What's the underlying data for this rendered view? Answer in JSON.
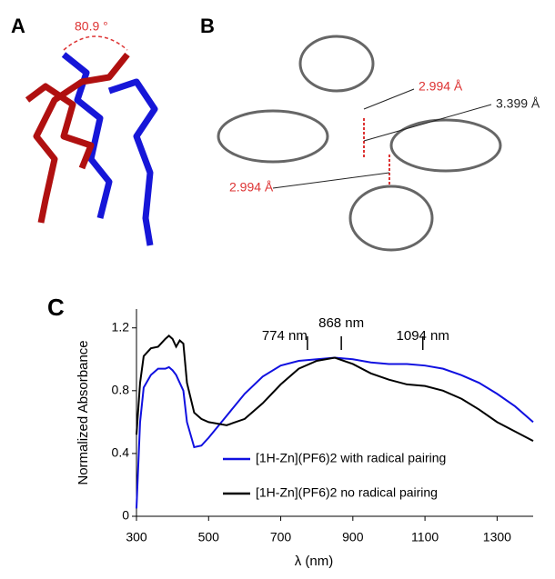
{
  "panels": {
    "a": {
      "label": "A",
      "angle": "80.9 °"
    },
    "b": {
      "label": "B",
      "distances": [
        "2.994 Å",
        "3.399 Å",
        "2.994 Å"
      ]
    },
    "c": {
      "label": "C"
    }
  },
  "chart_data": {
    "type": "line",
    "xlabel": "λ (nm)",
    "ylabel": "Normalized Absorbance",
    "x": [
      300,
      310,
      320,
      340,
      360,
      380,
      390,
      400,
      410,
      420,
      430,
      440,
      460,
      480,
      500,
      550,
      600,
      650,
      700,
      750,
      800,
      850,
      900,
      950,
      1000,
      1050,
      1100,
      1150,
      1200,
      1250,
      1300,
      1350,
      1400
    ],
    "series": [
      {
        "name": "[1H-Zn](PF6)2 with radical pairing",
        "color": "#1010e0",
        "values": [
          0.05,
          0.6,
          0.82,
          0.9,
          0.94,
          0.94,
          0.95,
          0.93,
          0.9,
          0.85,
          0.8,
          0.6,
          0.44,
          0.45,
          0.5,
          0.64,
          0.78,
          0.89,
          0.96,
          0.99,
          1.0,
          1.01,
          1.0,
          0.98,
          0.97,
          0.97,
          0.96,
          0.94,
          0.9,
          0.85,
          0.78,
          0.7,
          0.6
        ]
      },
      {
        "name": "[1H-Zn](PF6)2 no radical pairing",
        "color": "#000000",
        "values": [
          0.52,
          0.85,
          1.02,
          1.07,
          1.08,
          1.13,
          1.15,
          1.13,
          1.08,
          1.12,
          1.1,
          0.85,
          0.66,
          0.62,
          0.6,
          0.58,
          0.62,
          0.72,
          0.84,
          0.94,
          0.99,
          1.01,
          0.97,
          0.91,
          0.87,
          0.84,
          0.83,
          0.8,
          0.75,
          0.68,
          0.6,
          0.54,
          0.48
        ]
      }
    ],
    "annotations": [
      {
        "text": "774 nm",
        "x": 774
      },
      {
        "text": "868 nm",
        "x": 868
      },
      {
        "text": "1094 nm",
        "x": 1094
      }
    ],
    "xlim": [
      300,
      1400
    ],
    "xticks": [
      300,
      500,
      700,
      900,
      1100,
      1300
    ],
    "ylim": [
      0,
      1.32
    ],
    "yticks": [
      0,
      0.4,
      0.8,
      1.2
    ],
    "legend": "lower right"
  }
}
